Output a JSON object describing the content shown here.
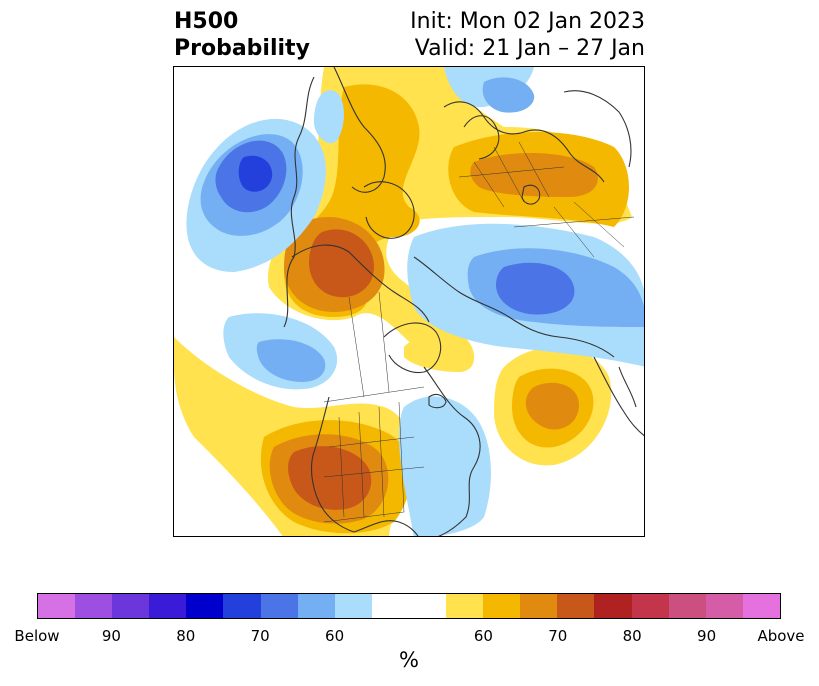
{
  "header": {
    "variable": "H500",
    "product": "Probability",
    "init": "Init: Mon 02 Jan 2023",
    "valid": "Valid: 21 Jan – 27 Jan"
  },
  "colorbar": {
    "unit": "%",
    "colors": [
      "#d571e5",
      "#9c4fe0",
      "#6b37dc",
      "#3a1bd7",
      "#0000cc",
      "#2340dc",
      "#4b74e6",
      "#74aff3",
      "#aadcfb",
      "#ffffff",
      "#ffffff",
      "#ffe24d",
      "#f5b800",
      "#e08b0f",
      "#c8571a",
      "#b02222",
      "#c3354b",
      "#cb4f7f",
      "#d55ca6",
      "#e571df"
    ],
    "tick_labels": [
      "Below",
      "90",
      "80",
      "70",
      "60",
      "60",
      "70",
      "80",
      "90",
      "Above"
    ]
  },
  "map": {
    "fill_colors": {
      "below_60": "#aadcfb",
      "below_65": "#74aff3",
      "below_70": "#4b74e6",
      "below_75": "#2340dc",
      "above_60": "#ffe24d",
      "above_65": "#f5b800",
      "above_70": "#e08b0f",
      "above_75": "#c8571a"
    },
    "coastline_color": "#333333"
  }
}
